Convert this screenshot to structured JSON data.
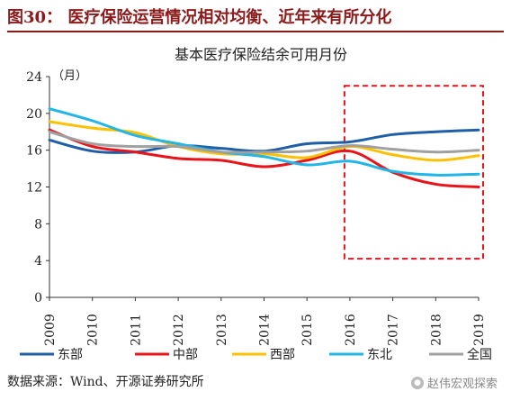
{
  "figure_heading": "图30：  医疗保险运营情况相对均衡、近年来有所分化",
  "source_note": "数据来源：Wind、开源证券研究所",
  "watermark": "赵伟宏观探索",
  "chart_data": {
    "type": "line",
    "title": "基本医疗保险结余可用月份",
    "unit_label": "（月）",
    "x": [
      "2009",
      "2010",
      "2011",
      "2012",
      "2013",
      "2014",
      "2015",
      "2016",
      "2017",
      "2018",
      "2019"
    ],
    "ylim": [
      0,
      24
    ],
    "yticks": [
      "0",
      "4",
      "8",
      "12",
      "16",
      "20",
      "24"
    ],
    "grid": false,
    "legend_position": "bottom",
    "series": [
      {
        "name": "东部",
        "color": "#1f5fa8",
        "values": [
          17.1,
          15.9,
          15.8,
          16.5,
          16.2,
          15.9,
          16.7,
          16.9,
          17.7,
          18.0,
          18.2
        ]
      },
      {
        "name": "中部",
        "color": "#e8141a",
        "values": [
          18.2,
          16.4,
          15.8,
          15.1,
          14.9,
          14.2,
          14.9,
          15.9,
          13.6,
          12.3,
          12.0
        ]
      },
      {
        "name": "西部",
        "color": "#ffc000",
        "values": [
          19.1,
          18.4,
          17.9,
          16.4,
          15.6,
          15.6,
          15.2,
          16.4,
          15.5,
          14.9,
          15.4
        ]
      },
      {
        "name": "东北",
        "color": "#22b5e8",
        "values": [
          20.5,
          19.2,
          17.6,
          16.7,
          15.8,
          15.3,
          14.4,
          14.8,
          13.7,
          13.3,
          13.4
        ]
      },
      {
        "name": "全国",
        "color": "#a0a0a0",
        "values": [
          18.0,
          16.7,
          16.4,
          16.4,
          15.8,
          15.8,
          15.9,
          16.5,
          16.1,
          15.8,
          16.0
        ]
      }
    ],
    "annotation": {
      "type": "dashed-box",
      "color": "#e8141a",
      "x_from": "2016",
      "x_to": "2019",
      "y_from": 4.2,
      "y_to": 23.0
    }
  }
}
